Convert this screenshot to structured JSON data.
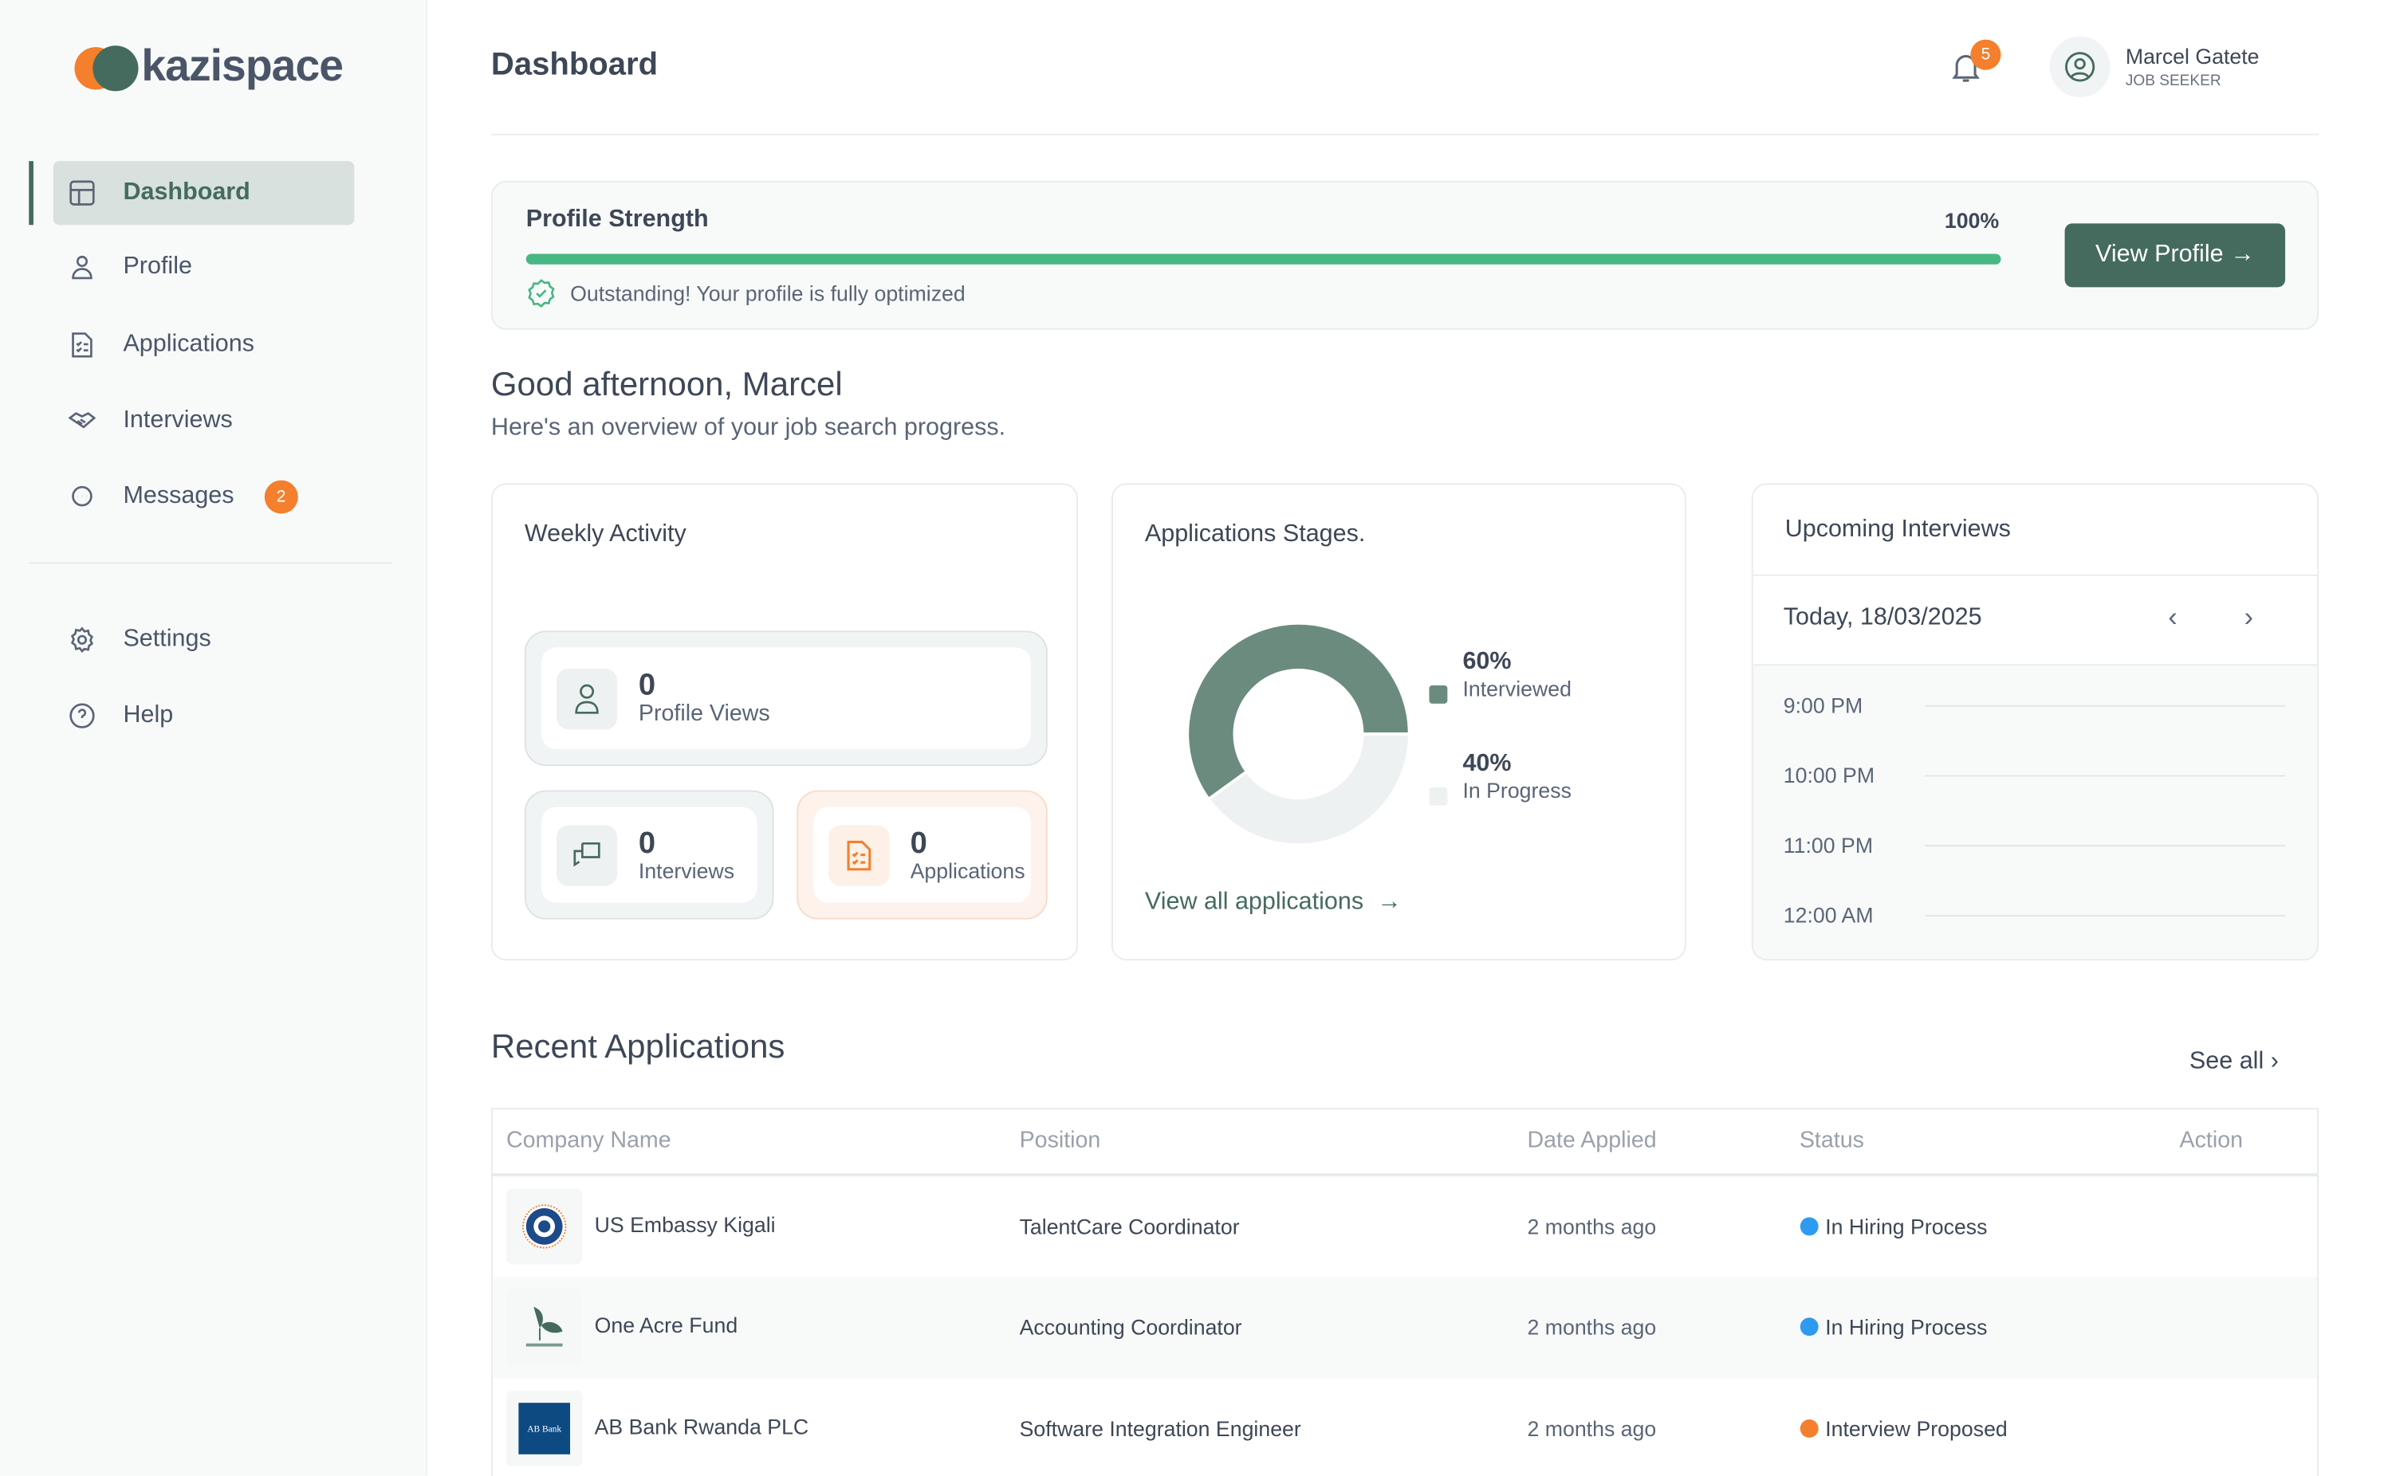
{
  "brand": {
    "name": "kazispace",
    "colors": {
      "orange": "#f47f2c",
      "green": "#456b5e"
    }
  },
  "sidebar": {
    "items": [
      {
        "label": "Dashboard",
        "icon": "layout-icon",
        "active": true
      },
      {
        "label": "Profile",
        "icon": "user-icon"
      },
      {
        "label": "Applications",
        "icon": "checklist-document-icon"
      },
      {
        "label": "Interviews",
        "icon": "handshake-icon"
      },
      {
        "label": "Messages",
        "icon": "chat-icon",
        "badge": "2"
      }
    ],
    "bottom": [
      {
        "label": "Settings",
        "icon": "gear-icon"
      },
      {
        "label": "Help",
        "icon": "help-circle-icon"
      }
    ]
  },
  "header": {
    "title": "Dashboard",
    "notifications": "5",
    "user": {
      "name": "Marcel Gatete",
      "role": "JOB SEEKER"
    }
  },
  "profile_strength": {
    "title": "Profile Strength",
    "percent_label": "100%",
    "percent": 100,
    "message": "Outstanding! Your profile is fully optimized",
    "button": "View Profile"
  },
  "greeting": {
    "title": "Good afternoon, Marcel",
    "subtitle": "Here's an overview of your job search progress."
  },
  "weekly": {
    "title": "Weekly Activity",
    "stats": [
      {
        "value": "0",
        "label": "Profile Views"
      },
      {
        "value": "0",
        "label": "Interviews"
      },
      {
        "value": "0",
        "label": "Applications"
      }
    ]
  },
  "stages": {
    "title": "Applications Stages.",
    "link": "View all applications",
    "chart_data": {
      "type": "pie",
      "categories": [
        "Interviewed",
        "In Progress"
      ],
      "values": [
        60,
        40
      ],
      "labels": [
        "60%",
        "40%"
      ],
      "colors": [
        "#6b8b7e",
        "#edf1f1"
      ],
      "legend": "right"
    }
  },
  "interviews": {
    "title": "Upcoming Interviews",
    "date": "Today, 18/03/2025",
    "times": [
      "9:00 PM",
      "10:00 PM",
      "11:00 PM",
      "12:00 AM"
    ]
  },
  "recent": {
    "title": "Recent Applications",
    "see_all": "See all",
    "columns": [
      "Company Name",
      "Position",
      "Date Applied",
      "Status",
      "Action"
    ],
    "rows": [
      {
        "company": "US Embassy Kigali",
        "position": "TalentCare Coordinator",
        "date": "2 months ago",
        "status": "In Hiring Process",
        "status_color": "#2e9bf0"
      },
      {
        "company": "One Acre Fund",
        "position": "Accounting Coordinator",
        "date": "2 months ago",
        "status": "In Hiring Process",
        "status_color": "#2e9bf0"
      },
      {
        "company": "AB Bank Rwanda PLC",
        "position": "Software Integration Engineer",
        "date": "2 months ago",
        "status": "Interview Proposed",
        "status_color": "#f47f2c"
      }
    ]
  }
}
